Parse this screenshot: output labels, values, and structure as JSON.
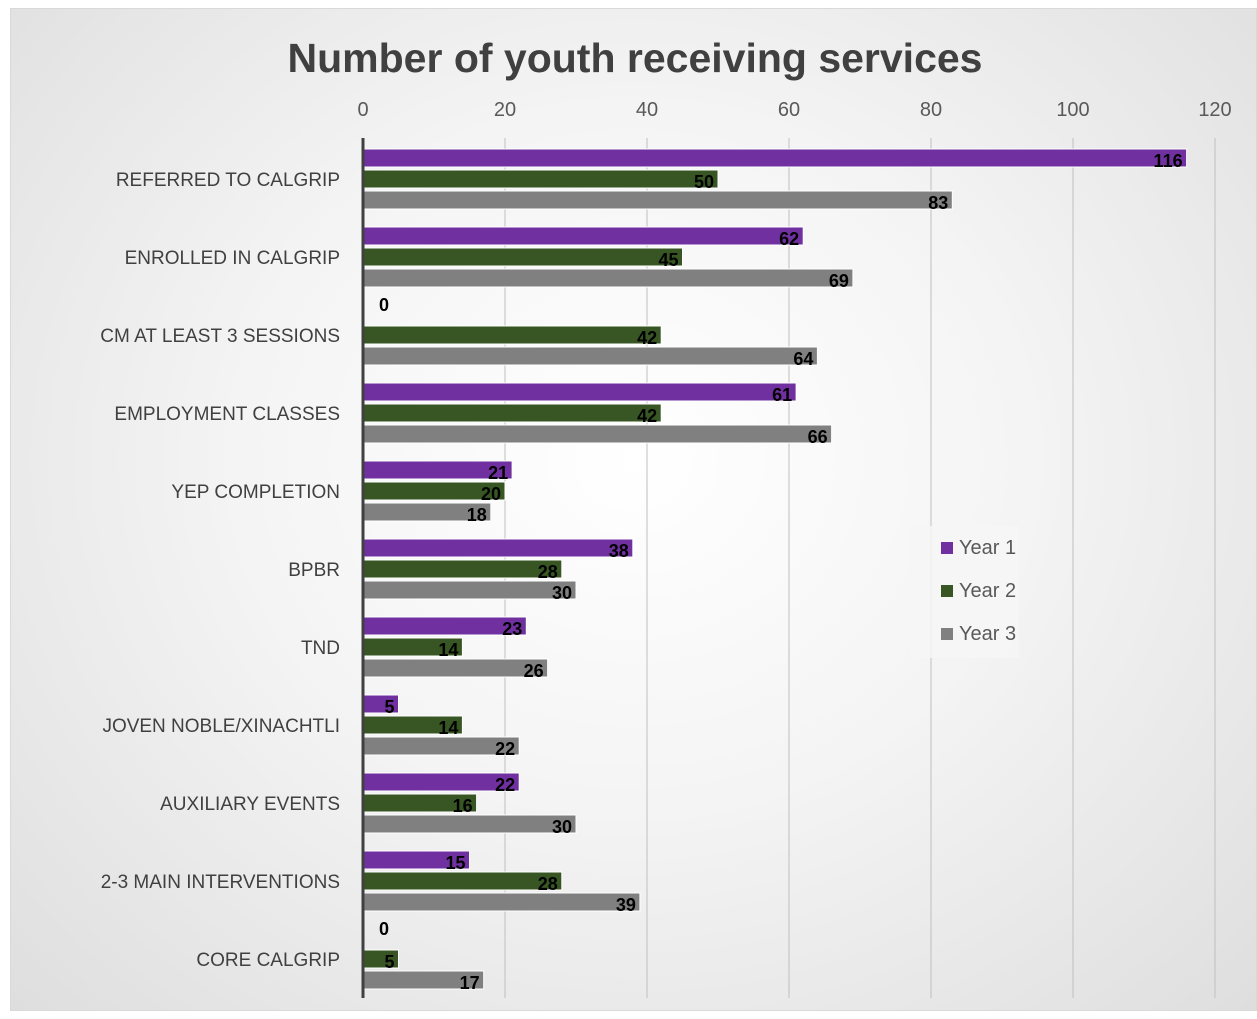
{
  "chart_data": {
    "type": "bar",
    "orientation": "horizontal",
    "title": "Number of youth receiving services",
    "xlabel": "",
    "ylabel": "",
    "xlim": [
      0,
      120
    ],
    "x_ticks": [
      0,
      20,
      40,
      60,
      80,
      100,
      120
    ],
    "x_axis_position": "top",
    "grid": true,
    "legend_position": "right",
    "categories": [
      "REFERRED TO CALGRIP",
      "ENROLLED IN CALGRIP",
      "CM AT LEAST 3 SESSIONS",
      "EMPLOYMENT CLASSES",
      "YEP COMPLETION",
      "BPBR",
      "TND",
      "JOVEN NOBLE/XINACHTLI",
      "AUXILIARY EVENTS",
      "2-3 MAIN INTERVENTIONS",
      "CORE CALGRIP"
    ],
    "series": [
      {
        "name": "Year 1",
        "color": "#7030a0",
        "values": [
          116,
          62,
          0,
          61,
          21,
          38,
          23,
          5,
          22,
          15,
          0
        ]
      },
      {
        "name": "Year 2",
        "color": "#375623",
        "values": [
          50,
          45,
          42,
          42,
          20,
          28,
          14,
          14,
          16,
          28,
          5
        ]
      },
      {
        "name": "Year 3",
        "color": "#808080",
        "values": [
          83,
          69,
          64,
          66,
          18,
          30,
          26,
          22,
          30,
          39,
          17
        ]
      }
    ]
  }
}
